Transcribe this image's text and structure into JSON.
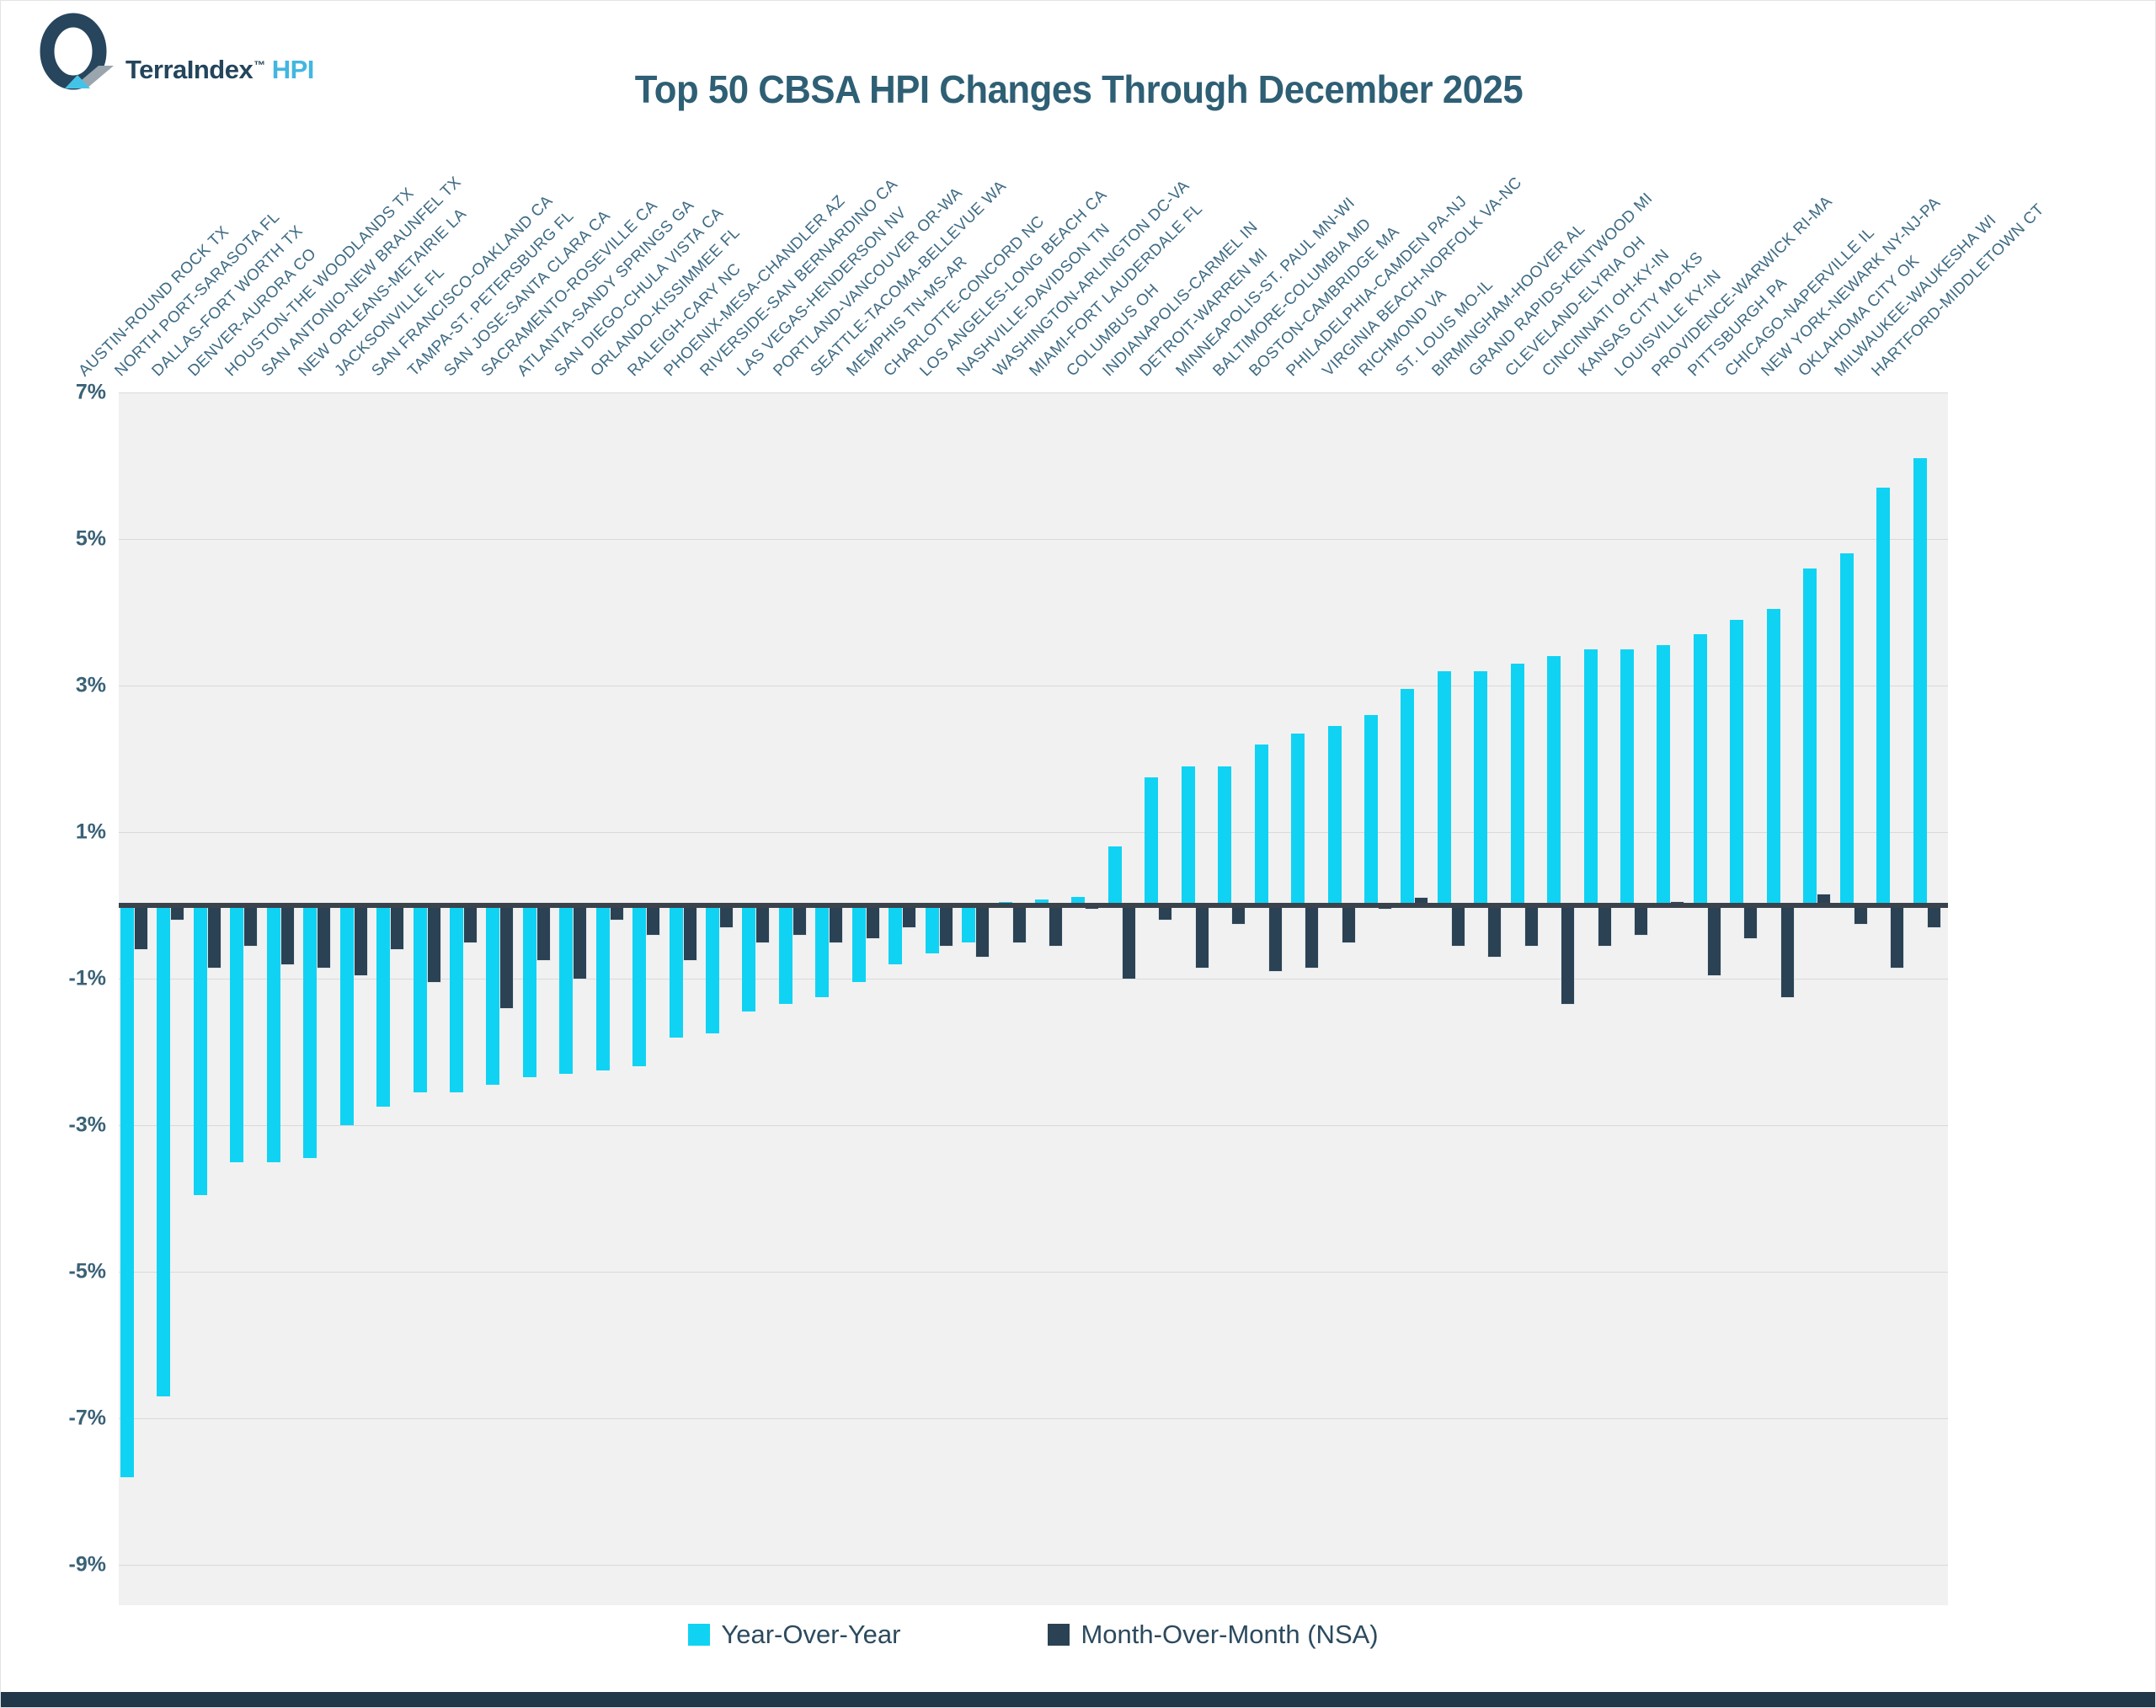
{
  "header": {
    "logo": {
      "brand": "TerraIndex",
      "tm": "™",
      "suffix": "HPI"
    },
    "title": "Top 50 CBSA HPI Changes Through December 2025"
  },
  "colors": {
    "yoy": "#10d3f3",
    "mom": "#2b4254",
    "title_text": "#2e5f74",
    "axis_text": "#3a6176",
    "category_text": "#3e6b84",
    "plot_background": "#f1f1f2",
    "gridline": "#d9d9d9",
    "zero_line": "#3a424c",
    "footer": "#21374a"
  },
  "chart_data": {
    "type": "bar",
    "title": "Top 50 CBSA HPI Changes Through December 2025",
    "xlabel": "",
    "ylabel": "",
    "ylim": [
      -9.55,
      7.0
    ],
    "grid": true,
    "legend_position": "bottom",
    "y_ticks": [
      {
        "v": 7,
        "label": "7%"
      },
      {
        "v": 5,
        "label": "5%"
      },
      {
        "v": 3,
        "label": "3%"
      },
      {
        "v": 1,
        "label": "1%"
      },
      {
        "v": -1,
        "label": "-1%"
      },
      {
        "v": -3,
        "label": "-3%"
      },
      {
        "v": -5,
        "label": "-5%"
      },
      {
        "v": -7,
        "label": "-7%"
      },
      {
        "v": -9,
        "label": "-9%"
      }
    ],
    "categories": [
      "AUSTIN-ROUND ROCK TX",
      "NORTH PORT-SARASOTA FL",
      "DALLAS-FORT WORTH TX",
      "DENVER-AURORA CO",
      "HOUSTON-THE WOODLANDS TX",
      "SAN ANTONIO-NEW BRAUNFEL TX",
      "NEW ORLEANS-METAIRIE LA",
      "JACKSONVILLE FL",
      "SAN FRANCISCO-OAKLAND CA",
      "TAMPA-ST. PETERSBURG FL",
      "SAN JOSE-SANTA CLARA CA",
      "SACRAMENTO-ROSEVILLE CA",
      "ATLANTA-SANDY SPRINGS GA",
      "SAN DIEGO-CHULA VISTA CA",
      "ORLANDO-KISSIMMEE FL",
      "RALEIGH-CARY NC",
      "PHOENIX-MESA-CHANDLER AZ",
      "RIVERSIDE-SAN BERNARDINO CA",
      "LAS VEGAS-HENDERSON NV",
      "PORTLAND-VANCOUVER OR-WA",
      "SEATTLE-TACOMA-BELLEVUE WA",
      "MEMPHIS TN-MS-AR",
      "CHARLOTTE-CONCORD NC",
      "LOS ANGELES-LONG BEACH CA",
      "NASHVILLE-DAVIDSON TN",
      "WASHINGTON-ARLINGTON DC-VA",
      "MIAMI-FORT LAUDERDALE FL",
      "COLUMBUS OH",
      "INDIANAPOLIS-CARMEL IN",
      "DETROIT-WARREN MI",
      "MINNEAPOLIS-ST. PAUL MN-WI",
      "BALTIMORE-COLUMBIA MD",
      "BOSTON-CAMBRIDGE MA",
      "PHILADELPHIA-CAMDEN PA-NJ",
      "VIRGINIA BEACH-NORFOLK VA-NC",
      "RICHMOND VA",
      "ST. LOUIS MO-IL",
      "BIRMINGHAM-HOOVER AL",
      "GRAND RAPIDS-KENTWOOD MI",
      "CLEVELAND-ELYRIA OH",
      "CINCINNATI OH-KY-IN",
      "KANSAS CITY MO-KS",
      "LOUISVILLE KY-IN",
      "PROVIDENCE-WARWICK RI-MA",
      "PITTSBURGH PA",
      "CHICAGO-NAPERVILLE IL",
      "NEW YORK-NEWARK NY-NJ-PA",
      "OKLAHOMA CITY OK",
      "MILWAUKEE-WAUKESHA WI",
      "HARTFORD-MIDDLETOWN CT"
    ],
    "series": [
      {
        "name": "Year-Over-Year",
        "color": "#10d3f3",
        "values": [
          -7.8,
          -6.7,
          -3.95,
          -3.5,
          -3.5,
          -3.45,
          -3.0,
          -2.75,
          -2.55,
          -2.55,
          -2.45,
          -2.35,
          -2.3,
          -2.25,
          -2.2,
          -1.8,
          -1.75,
          -1.45,
          -1.35,
          -1.25,
          -1.05,
          -0.8,
          -0.65,
          -0.5,
          0.05,
          0.08,
          0.12,
          0.8,
          1.75,
          1.9,
          1.9,
          2.2,
          2.35,
          2.45,
          2.6,
          2.95,
          3.2,
          3.2,
          3.3,
          3.4,
          3.5,
          3.5,
          3.55,
          3.7,
          3.9,
          4.05,
          4.6,
          4.8,
          5.7,
          6.1
        ]
      },
      {
        "name": "Month-Over-Month (NSA)",
        "color": "#2b4254",
        "values": [
          -0.6,
          -0.2,
          -0.85,
          -0.55,
          -0.8,
          -0.85,
          -0.95,
          -0.6,
          -1.05,
          -0.5,
          -1.4,
          -0.75,
          -1.0,
          -0.2,
          -0.4,
          -0.75,
          -0.3,
          -0.5,
          -0.4,
          -0.5,
          -0.45,
          -0.3,
          -0.55,
          -0.7,
          -0.5,
          -0.55,
          -0.05,
          -1.0,
          -0.2,
          -0.85,
          -0.25,
          -0.9,
          -0.85,
          -0.5,
          -0.05,
          0.1,
          -0.55,
          -0.7,
          -0.55,
          -1.35,
          -0.55,
          -0.4,
          0.05,
          -0.95,
          -0.45,
          -1.25,
          0.15,
          -0.25,
          -0.85,
          -0.3
        ]
      }
    ]
  },
  "legend": {
    "items": [
      {
        "label": "Year-Over-Year",
        "color": "#10d3f3"
      },
      {
        "label": "Month-Over-Month (NSA)",
        "color": "#2b4254"
      }
    ]
  }
}
